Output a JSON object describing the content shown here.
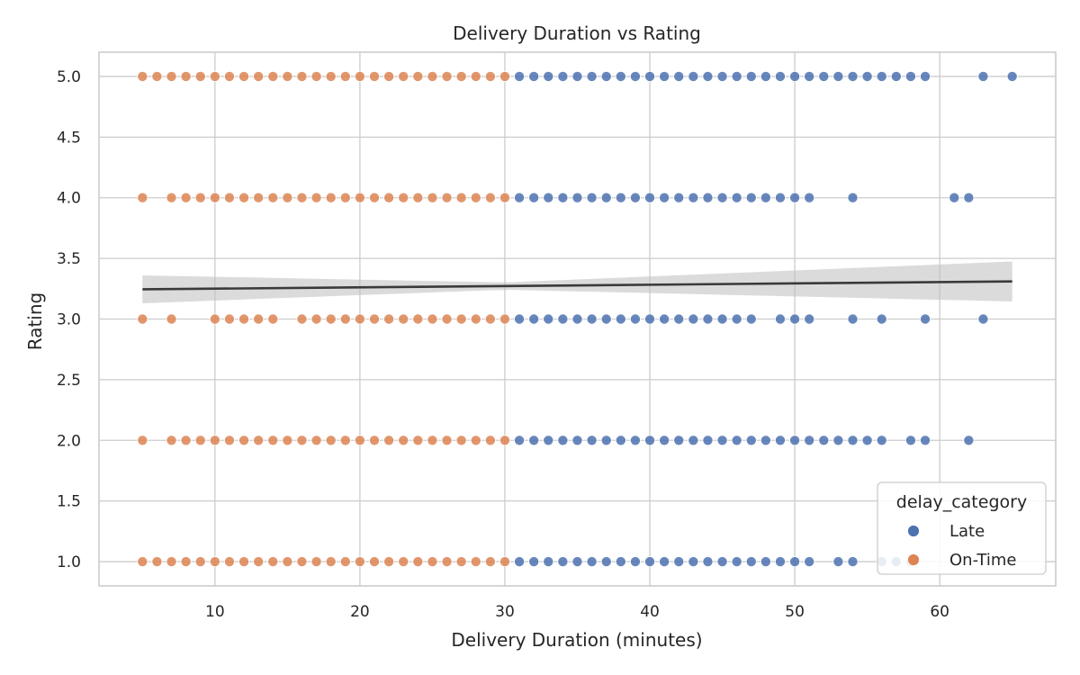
{
  "chart_data": {
    "type": "scatter",
    "title": "Delivery Duration vs Rating",
    "xlabel": "Delivery Duration (minutes)",
    "ylabel": "Rating",
    "xlim": [
      2,
      68
    ],
    "ylim": [
      0.8,
      5.2
    ],
    "xticks": [
      10,
      20,
      30,
      40,
      50,
      60
    ],
    "yticks": [
      "1.0",
      "1.5",
      "2.0",
      "2.5",
      "3.0",
      "3.5",
      "4.0",
      "4.5",
      "5.0"
    ],
    "grid": true,
    "legend": {
      "title": "delay_category",
      "position": "bottom-right",
      "entries": [
        "Late",
        "On-Time"
      ]
    },
    "series": [
      {
        "name": "Late",
        "color": "#4c72b0",
        "points": [
          {
            "y": 5.0,
            "x": [
              31,
              32,
              33,
              34,
              35,
              36,
              37,
              38,
              39,
              40,
              41,
              42,
              43,
              44,
              45,
              46,
              47,
              48,
              49,
              50,
              51,
              52,
              53,
              54,
              55,
              56,
              57,
              58,
              59,
              63,
              65
            ]
          },
          {
            "y": 4.0,
            "x": [
              31,
              32,
              33,
              34,
              35,
              36,
              37,
              38,
              39,
              40,
              41,
              42,
              43,
              44,
              45,
              46,
              47,
              48,
              49,
              50,
              51,
              54,
              61,
              62
            ]
          },
          {
            "y": 3.0,
            "x": [
              31,
              32,
              33,
              34,
              35,
              36,
              37,
              38,
              39,
              40,
              41,
              42,
              43,
              44,
              45,
              46,
              47,
              49,
              50,
              51,
              54,
              56,
              59,
              63
            ]
          },
          {
            "y": 2.0,
            "x": [
              31,
              32,
              33,
              34,
              35,
              36,
              37,
              38,
              39,
              40,
              41,
              42,
              43,
              44,
              45,
              46,
              47,
              48,
              49,
              50,
              51,
              52,
              53,
              54,
              55,
              56,
              58,
              59,
              62
            ]
          },
          {
            "y": 1.0,
            "x": [
              31,
              32,
              33,
              34,
              35,
              36,
              37,
              38,
              39,
              40,
              41,
              42,
              43,
              44,
              45,
              46,
              47,
              48,
              49,
              50,
              51,
              53,
              54,
              56,
              57,
              58
            ]
          }
        ]
      },
      {
        "name": "On-Time",
        "color": "#dd8452",
        "points": [
          {
            "y": 5.0,
            "x": [
              5,
              6,
              7,
              8,
              9,
              10,
              11,
              12,
              13,
              14,
              15,
              16,
              17,
              18,
              19,
              20,
              21,
              22,
              23,
              24,
              25,
              26,
              27,
              28,
              29,
              30
            ]
          },
          {
            "y": 4.0,
            "x": [
              5,
              7,
              8,
              9,
              10,
              11,
              12,
              13,
              14,
              15,
              16,
              17,
              18,
              19,
              20,
              21,
              22,
              23,
              24,
              25,
              26,
              27,
              28,
              29,
              30
            ]
          },
          {
            "y": 3.0,
            "x": [
              5,
              7,
              10,
              11,
              12,
              13,
              14,
              16,
              17,
              18,
              19,
              20,
              21,
              22,
              23,
              24,
              25,
              26,
              27,
              28,
              29,
              30
            ]
          },
          {
            "y": 2.0,
            "x": [
              5,
              7,
              8,
              9,
              10,
              11,
              12,
              13,
              14,
              15,
              16,
              17,
              18,
              19,
              20,
              21,
              22,
              23,
              24,
              25,
              26,
              27,
              28,
              29,
              30
            ]
          },
          {
            "y": 1.0,
            "x": [
              5,
              6,
              7,
              8,
              9,
              10,
              11,
              12,
              13,
              14,
              15,
              16,
              17,
              18,
              19,
              20,
              21,
              22,
              23,
              24,
              25,
              26,
              27,
              28,
              29,
              30
            ]
          }
        ]
      }
    ],
    "trendline": {
      "x": [
        5,
        65
      ],
      "y": [
        3.245,
        3.31
      ],
      "ci_upper": [
        3.36,
        3.48
      ],
      "ci_lower": [
        3.13,
        3.15
      ],
      "ci_min_x": 30,
      "ci_min_half": 0.03,
      "color": "#3a3a3a",
      "band_color": "#bdbdbd"
    }
  }
}
